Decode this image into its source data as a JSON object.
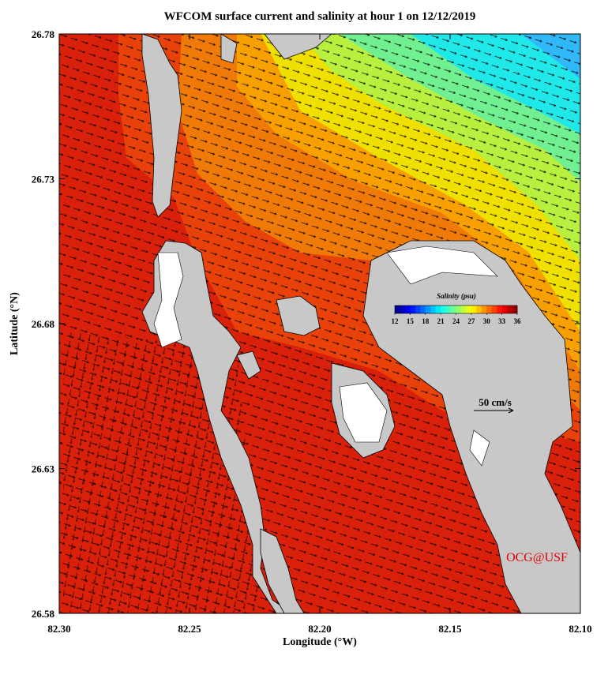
{
  "chart_data": {
    "type": "map",
    "title": "WFCOM surface current and salinity at hour 1 on 12/12/2019",
    "xlabel": "Longitude (°W)",
    "ylabel": "Latitude (°N)",
    "xlim": [
      82.3,
      82.1
    ],
    "ylim": [
      26.58,
      26.78
    ],
    "xticks": [
      {
        "value": 82.3,
        "label": "82.30"
      },
      {
        "value": 82.25,
        "label": "82.25"
      },
      {
        "value": 82.2,
        "label": "82.20"
      },
      {
        "value": 82.15,
        "label": "82.15"
      },
      {
        "value": 82.1,
        "label": "82.10"
      }
    ],
    "yticks": [
      26.58,
      26.63,
      26.68,
      26.73,
      26.78
    ],
    "colorbar": {
      "title": "Salinity (psu)",
      "ticks": [
        12,
        15,
        18,
        21,
        24,
        27,
        30,
        33,
        36
      ]
    },
    "scale_label": "50 cm/s",
    "credit": "OCG@USF"
  }
}
